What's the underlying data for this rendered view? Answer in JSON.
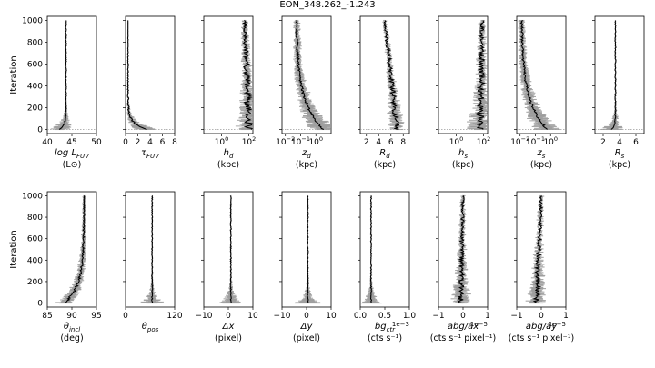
{
  "figure": {
    "title": "EON_348.262_-1.243",
    "ylabel": "Iteration",
    "y_ticks": [
      "0",
      "200",
      "400",
      "600",
      "800",
      "1000"
    ]
  },
  "chart_data": [
    {
      "type": "line",
      "name": "log L_FUV",
      "xlabel": "log L_FUV",
      "unit": "(L⊙)",
      "xscale": "linear",
      "xlim": [
        40,
        50
      ],
      "xticks": [
        40,
        45,
        50
      ],
      "xtick_labels": [
        "40",
        "45",
        "50"
      ],
      "final_value": 43.8,
      "start_value": 42.5,
      "style": "converge_early",
      "ylim": [
        0,
        1000
      ]
    },
    {
      "type": "line",
      "name": "tau_FUV",
      "xlabel": "τ_FUV",
      "unit": "",
      "xscale": "linear",
      "xlim": [
        0,
        8
      ],
      "xticks": [
        0,
        2,
        4,
        6,
        8
      ],
      "xtick_labels": [
        "0",
        "2",
        "4",
        "6",
        "8"
      ],
      "final_value": 0.4,
      "start_value": 3.5,
      "style": "decay_to_left",
      "ylim": [
        0,
        1000
      ]
    },
    {
      "type": "line",
      "name": "h_d",
      "xlabel": "h_d",
      "unit": "(kpc)",
      "xscale": "log",
      "xlim": [
        0.05,
        200
      ],
      "xticks": [
        1,
        100
      ],
      "xtick_labels": [
        "10^0",
        "10^2"
      ],
      "final_value": 50,
      "start_value": 100,
      "style": "drift_wide",
      "ylim": [
        0,
        1000
      ]
    },
    {
      "type": "line",
      "name": "z_d",
      "xlabel": "z_d",
      "unit": "(kpc)",
      "xscale": "log",
      "xlim": [
        0.006,
        10
      ],
      "xticks": [
        0.01,
        0.1,
        1
      ],
      "xtick_labels": [
        "10^-2",
        "10^-1",
        "10^0"
      ],
      "final_value": 0.05,
      "start_value": 3.0,
      "style": "curve_left",
      "ylim": [
        0,
        1000
      ]
    },
    {
      "type": "line",
      "name": "R_d",
      "xlabel": "R_d",
      "unit": "(kpc)",
      "xscale": "linear",
      "xlim": [
        1,
        9
      ],
      "xticks": [
        2,
        4,
        6,
        8
      ],
      "xtick_labels": [
        "2",
        "4",
        "6",
        "8"
      ],
      "final_value": 5.0,
      "start_value": 7.0,
      "style": "drift_wide",
      "ylim": [
        0,
        1000
      ]
    },
    {
      "type": "line",
      "name": "h_s",
      "xlabel": "h_s",
      "unit": "(kpc)",
      "xscale": "log",
      "xlim": [
        0.05,
        200
      ],
      "xticks": [
        1,
        100
      ],
      "xtick_labels": [
        "10^0",
        "10^2"
      ],
      "final_value": 80,
      "start_value": 60,
      "style": "noisy_right",
      "ylim": [
        0,
        1000
      ]
    },
    {
      "type": "line",
      "name": "z_s",
      "xlabel": "z_s",
      "unit": "(kpc)",
      "xscale": "log",
      "xlim": [
        0.006,
        10
      ],
      "xticks": [
        0.01,
        0.1,
        1
      ],
      "xtick_labels": [
        "10^-2",
        "10^-1",
        "10^0"
      ],
      "final_value": 0.012,
      "start_value": 0.6,
      "style": "curve_left",
      "ylim": [
        0,
        1000
      ]
    },
    {
      "type": "line",
      "name": "R_s",
      "xlabel": "R_s",
      "unit": "(kpc)",
      "xscale": "linear",
      "xlim": [
        1,
        7
      ],
      "xticks": [
        2,
        4,
        6
      ],
      "xtick_labels": [
        "2",
        "4",
        "6"
      ],
      "final_value": 3.5,
      "start_value": 3.0,
      "style": "converge_early",
      "ylim": [
        0,
        1000
      ]
    },
    {
      "type": "line",
      "name": "theta_incl",
      "xlabel": "θ_incl",
      "unit": "(deg)",
      "xscale": "linear",
      "xlim": [
        85,
        95
      ],
      "xticks": [
        85,
        90,
        95
      ],
      "xtick_labels": [
        "85",
        "90",
        "95"
      ],
      "final_value": 92.5,
      "start_value": 88.5,
      "style": "drift_right",
      "ylim": [
        0,
        1000
      ]
    },
    {
      "type": "line",
      "name": "theta_pos",
      "xlabel": "θ_pos",
      "unit": "",
      "xscale": "linear",
      "xlim": [
        0,
        120
      ],
      "xticks": [
        0,
        120
      ],
      "xtick_labels": [
        "0",
        "120"
      ],
      "final_value": 65,
      "start_value": 65,
      "style": "spike",
      "ylim": [
        0,
        1000
      ]
    },
    {
      "type": "line",
      "name": "delta_x",
      "xlabel": "Δx",
      "unit": "(pixel)",
      "xscale": "linear",
      "xlim": [
        -10,
        10
      ],
      "xticks": [
        -10,
        0,
        10
      ],
      "xtick_labels": [
        "−10",
        "0",
        "10"
      ],
      "final_value": 1,
      "start_value": 1,
      "style": "spike",
      "ylim": [
        0,
        1000
      ]
    },
    {
      "type": "line",
      "name": "delta_y",
      "xlabel": "Δy",
      "unit": "(pixel)",
      "xscale": "linear",
      "xlim": [
        -10,
        10
      ],
      "xticks": [
        -10,
        0,
        10
      ],
      "xtick_labels": [
        "−10",
        "0",
        "10"
      ],
      "final_value": 0.5,
      "start_value": 0.5,
      "style": "spike",
      "ylim": [
        0,
        1000
      ]
    },
    {
      "type": "line",
      "name": "bg_ctr",
      "xlabel": "bg_ctr",
      "unit": "(cts s⁻¹)",
      "xscale": "linear",
      "xlim": [
        0,
        1.0
      ],
      "xticks": [
        0,
        0.5,
        1.0
      ],
      "xtick_labels": [
        "0.0",
        "0.5",
        "1.0"
      ],
      "offset": "1e−3",
      "final_value": 0.22,
      "start_value": 0.25,
      "style": "spike",
      "ylim": [
        0,
        1000
      ]
    },
    {
      "type": "line",
      "name": "abg_ax",
      "xlabel": "abg/ax",
      "unit": "(cts s⁻¹ pixel⁻¹)",
      "xscale": "linear",
      "xlim": [
        -1,
        1
      ],
      "xticks": [
        -1,
        0,
        1
      ],
      "xtick_labels": [
        "−1",
        "0",
        "1"
      ],
      "offset": "1e−5",
      "final_value": 0.0,
      "start_value": -0.1,
      "style": "wide_noise",
      "ylim": [
        0,
        1000
      ]
    },
    {
      "type": "line",
      "name": "abg_ay",
      "xlabel": "abg/ay",
      "unit": "(cts s⁻¹ pixel⁻¹)",
      "xscale": "linear",
      "xlim": [
        -1,
        1
      ],
      "xticks": [
        -1,
        0,
        1
      ],
      "xtick_labels": [
        "−1",
        "0",
        "1"
      ],
      "offset": "1e−5",
      "final_value": 0.0,
      "start_value": -0.2,
      "style": "wide_noise",
      "ylim": [
        0,
        1000
      ]
    }
  ]
}
